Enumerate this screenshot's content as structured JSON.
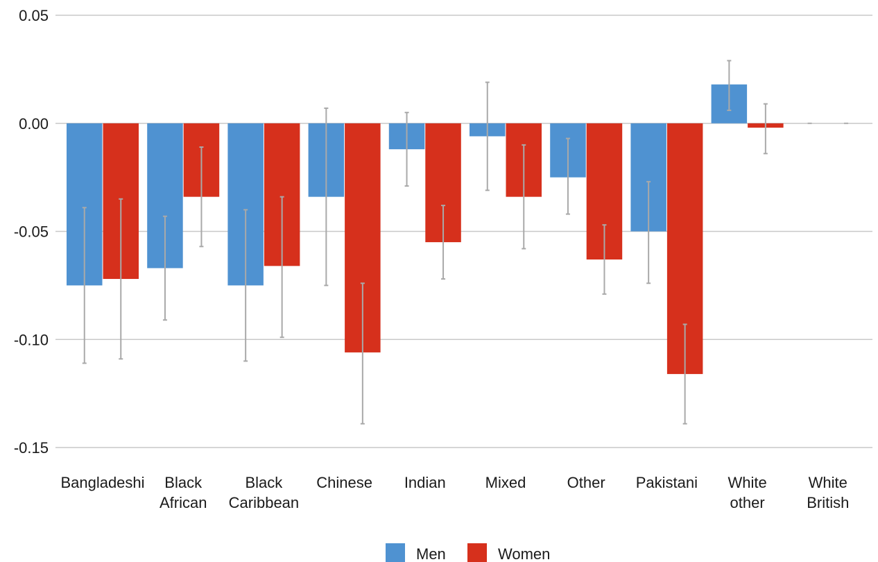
{
  "chart_data": {
    "type": "bar",
    "categories": [
      [
        "Bangladeshi"
      ],
      [
        "Black",
        "African"
      ],
      [
        "Black",
        "Caribbean"
      ],
      [
        "Chinese"
      ],
      [
        "Indian"
      ],
      [
        "Mixed"
      ],
      [
        "Other"
      ],
      [
        "Pakistani"
      ],
      [
        "White",
        "other"
      ],
      [
        "White",
        "British"
      ]
    ],
    "series": [
      {
        "name": "Men",
        "color": "#4f92d1",
        "values": [
          -0.075,
          -0.067,
          -0.075,
          -0.034,
          -0.012,
          -0.006,
          -0.025,
          -0.05,
          0.018,
          0.0
        ],
        "err_low": [
          -0.111,
          -0.091,
          -0.11,
          -0.075,
          -0.029,
          -0.031,
          -0.042,
          -0.074,
          0.006,
          0.0
        ],
        "err_high": [
          -0.039,
          -0.043,
          -0.04,
          0.007,
          0.005,
          0.019,
          -0.007,
          -0.027,
          0.029,
          0.0
        ]
      },
      {
        "name": "Women",
        "color": "#d6301c",
        "values": [
          -0.072,
          -0.034,
          -0.066,
          -0.106,
          -0.055,
          -0.034,
          -0.063,
          -0.116,
          -0.002,
          0.0
        ],
        "err_low": [
          -0.109,
          -0.057,
          -0.099,
          -0.139,
          -0.072,
          -0.058,
          -0.079,
          -0.139,
          -0.014,
          0.0
        ],
        "err_high": [
          -0.035,
          -0.011,
          -0.034,
          -0.074,
          -0.038,
          -0.01,
          -0.047,
          -0.093,
          0.009,
          0.0
        ]
      }
    ],
    "yticks": [
      0.05,
      0.0,
      -0.05,
      -0.1,
      -0.15
    ],
    "ytick_labels": [
      "0.05",
      "0.00",
      "-0.05",
      "-0.10",
      "-0.15"
    ],
    "ylim": [
      -0.15,
      0.05
    ],
    "title": "",
    "xlabel": "",
    "ylabel": "",
    "grid": true,
    "legend_position": "bottom-center",
    "error_bar_color": "#a9a9a9"
  }
}
